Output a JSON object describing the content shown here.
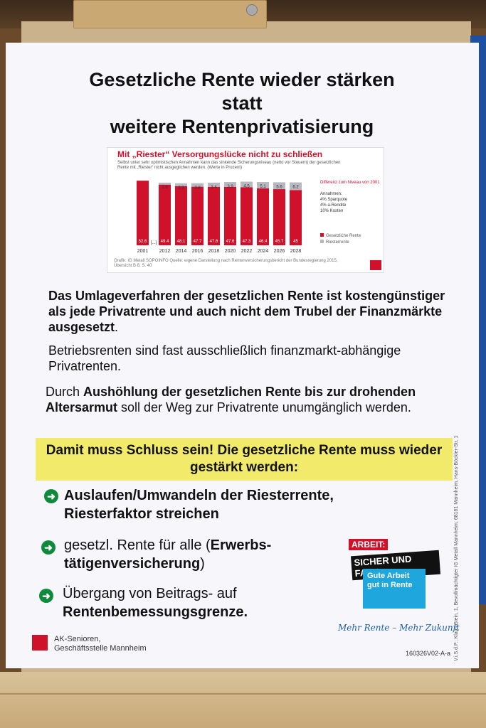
{
  "poster": {
    "title_lines": [
      "Gesetzliche Rente wieder stärken",
      "statt",
      "weitere Rentenprivatisierung"
    ],
    "chart": {
      "heading": "Mit „Riester“ Versorgungslücke nicht zu schließen",
      "subtitle": "Selbst unter sehr optimistischen Annahmen kann das sinkende Sicherungsniveau (netto vor Steuern) der gesetzlichen Rente mit „Riester“ nicht ausgeglichen werden. (Werte in Prozent)",
      "source": "Grafik: IG Metall SOPOINFO  Quelle: eigene Darstellung nach Rentenversicherungsbericht der Bundesregierung 2015, Übersicht B 8, S. 40",
      "ellipsis": "[...]"
    },
    "paragraph1_bold": "Das Umlageverfahren der gesetzlichen Rente ist kostengünstiger als jede Privatrente und auch nicht dem Trubel der Finanzmärkte ausgesetzt",
    "paragraph1_end": ".",
    "paragraph1_normal": "Betriebsrenten sind fast ausschließlich finanzmarkt-abhängige Privatrenten.",
    "p2_a": "Durch ",
    "p2_b": "Aushöhlung der gesetzlichen Rente bis zur drohenden Altersarmut",
    "p2_c": " soll der Weg zur Privatrente unumgänglich werden.",
    "highlight": "Damit muss Schluss sein! Die gesetzliche Rente muss wieder gestärkt werden:",
    "items": {
      "i1": "Auslaufen/Umwandeln der Riesterrente, Riesterfaktor streichen",
      "i2a": "gesetzl. Rente für alle (",
      "i2b": "Erwerbs-tätigenversicherung",
      "i2c": ")",
      "i3a": "Übergang von Beitrags- auf",
      "i3b": "Rentenbemessungsgrenze."
    },
    "badge": {
      "line1": "ARBEIT:",
      "line2": "SICHER UND FAIR!",
      "line3": "Gute Arbeit",
      "line4": "gut in Rente"
    },
    "slogan": "Mehr Rente – Mehr Zukunft",
    "footer_line1": "AK-Senioren,",
    "footer_line2": "Geschäftsstelle Mannheim",
    "code": "160326V02-A-a",
    "vertical_text": "V.i.S.d.P.: Klaus Stein, 1. Bevollmächtigter IG Metall Mannheim, 68161 Mannheim, Hans-Böckler-Str. 1"
  },
  "chart_data": {
    "type": "bar",
    "categories": [
      "2001",
      "2012",
      "2014",
      "2016",
      "2018",
      "2020",
      "2022",
      "2024",
      "2026",
      "2028"
    ],
    "series": [
      {
        "name": "Gesetzliche Rente",
        "values": [
          52.6,
          49.4,
          48.1,
          47.7,
          47.6,
          47.6,
          47.3,
          46.4,
          45.7,
          45.0
        ],
        "color": "#d0112b"
      },
      {
        "name": "Riesterrente",
        "values": [
          0,
          1.6,
          2.3,
          2.8,
          3.4,
          3.9,
          4.5,
          5.1,
          5.6,
          6.2
        ],
        "color": "#b8b8c0"
      }
    ],
    "legend_labels": [
      "Gesetzliche Rente",
      "Riesterrente"
    ],
    "annotation_title": "Differenz zum Niveau von 2001",
    "annotation_assumptions": [
      "Annahmen:",
      "4% Sparquote",
      "4% a-Rendite",
      "10% Kosten"
    ],
    "ylim": [
      0,
      55
    ]
  }
}
